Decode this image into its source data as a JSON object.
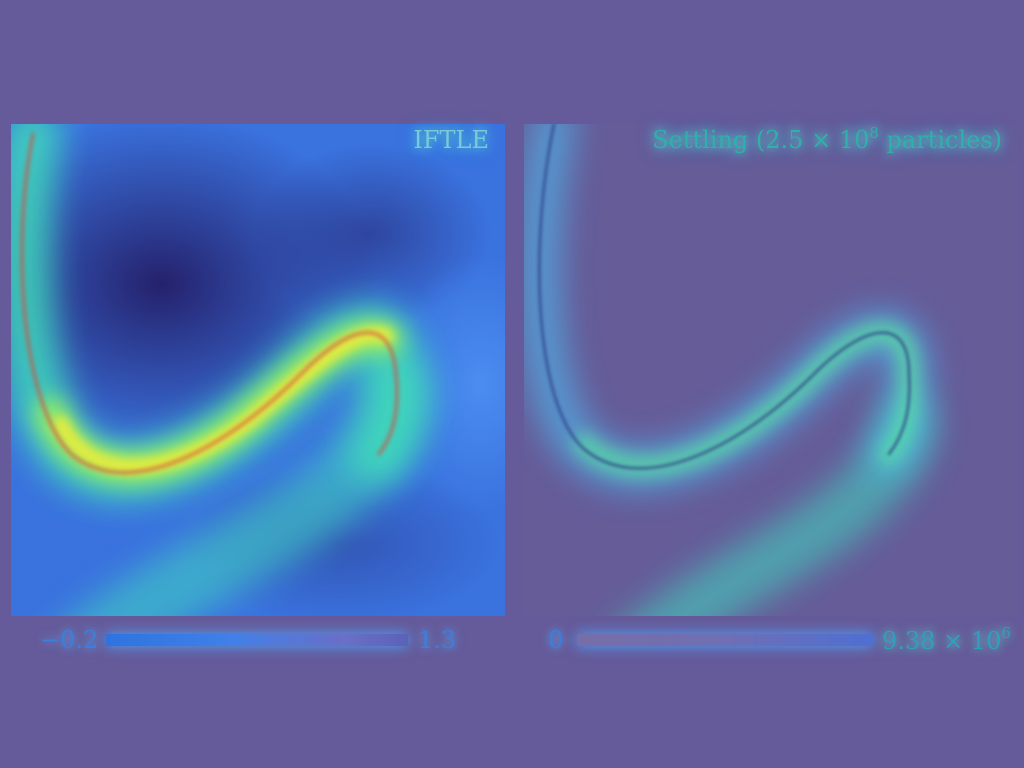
{
  "panels": [
    {
      "id": "iftle",
      "title": "IFTLE",
      "colorbar": {
        "min_label": "−0.2",
        "max_label": "1.3"
      }
    },
    {
      "id": "settling",
      "title_prefix": "Settling (2.5 × 10",
      "title_exponent": "8",
      "title_suffix": " particles)",
      "colorbar": {
        "min_label": "0",
        "max_label_mantissa": "9.38 × 10",
        "max_label_exponent": "6"
      }
    }
  ],
  "colors": {
    "background": "#655a9a",
    "field_low": "#2a2570",
    "field_mid": "#3f80e8",
    "ridge_green": "#48e08a",
    "ridge_yellow": "#e8e83a",
    "ridge_red": "#e05030",
    "glow_cyan": "#56e6c5"
  }
}
